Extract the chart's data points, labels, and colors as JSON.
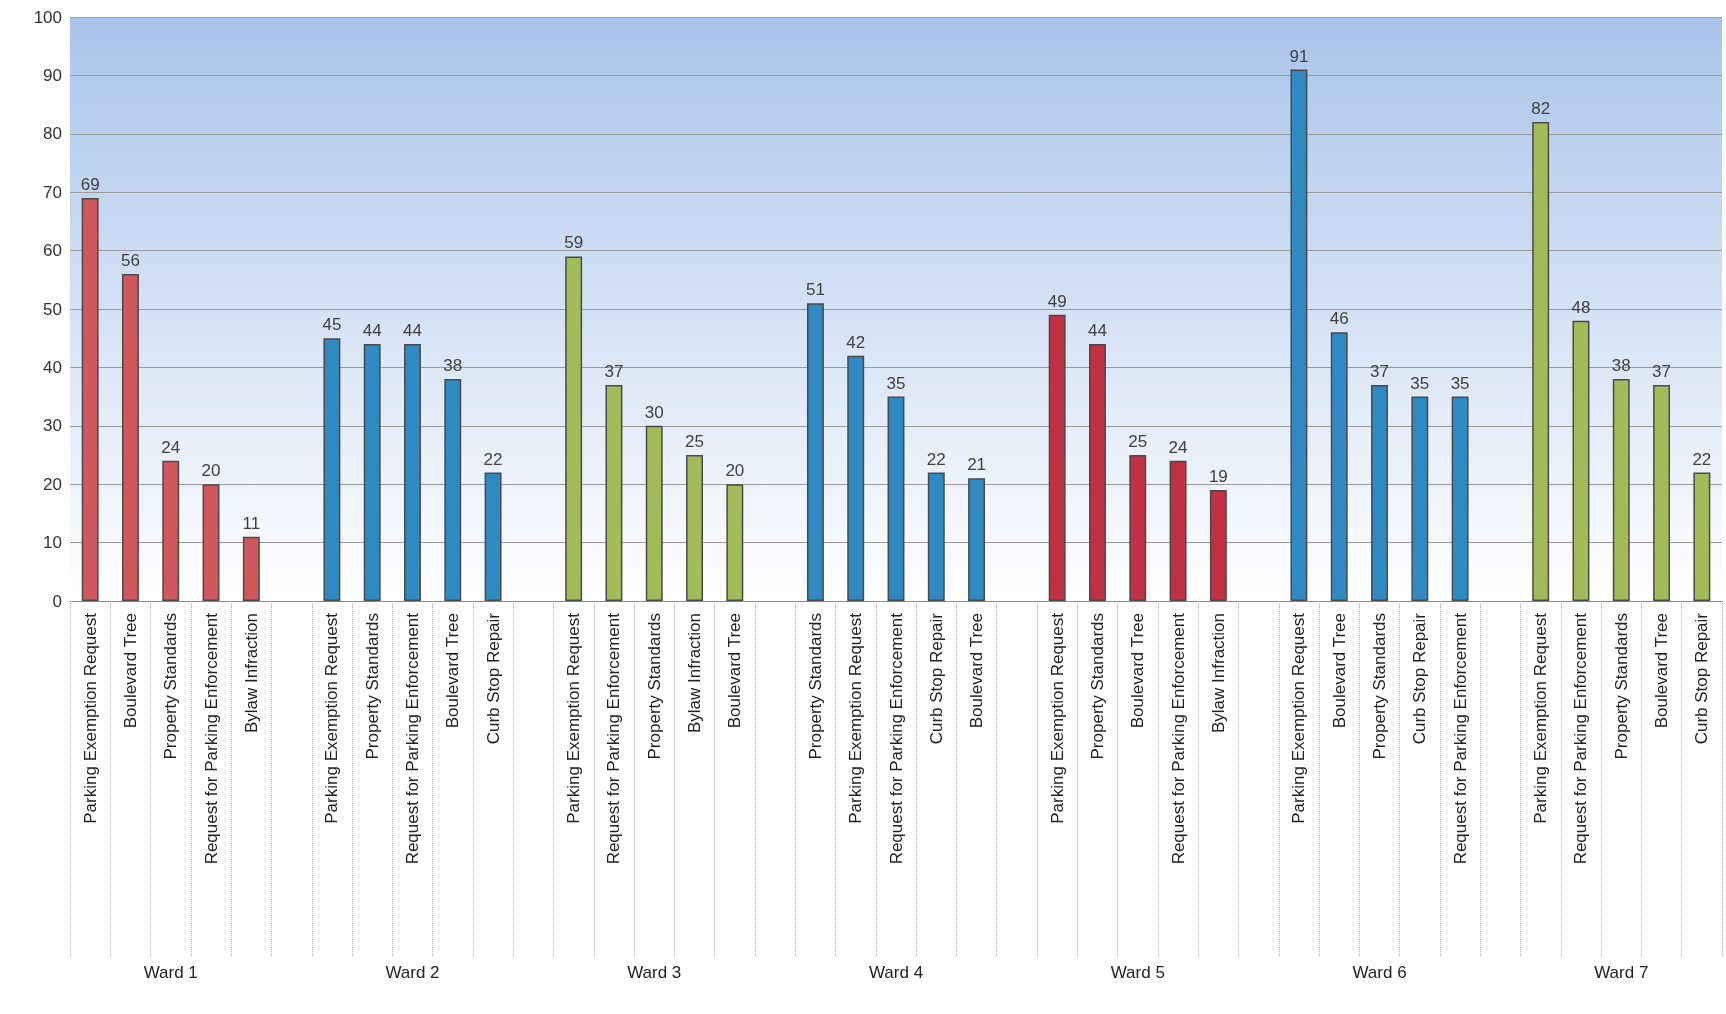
{
  "chart_data": {
    "type": "bar",
    "categories": [
      "Parking Exemption Request",
      "Boulevard Tree",
      "Property Standards",
      "Request for Parking Enforcement",
      "Bylaw Infraction",
      null,
      "Parking Exemption Request",
      "Property Standards",
      "Request for Parking Enforcement",
      "Boulevard Tree",
      "Curb Stop Repair",
      null,
      "Parking Exemption Request",
      "Request for Parking Enforcement",
      "Property Standards",
      "Bylaw Infraction",
      "Boulevard Tree",
      null,
      "Property Standards",
      "Parking Exemption Request",
      "Request for Parking Enforcement",
      "Curb Stop Repair",
      "Boulevard Tree",
      null,
      "Parking Exemption Request",
      "Property Standards",
      "Boulevard Tree",
      "Request for Parking Enforcement",
      "Bylaw Infraction",
      null,
      "Parking Exemption Request",
      "Boulevard Tree",
      "Property Standards",
      "Curb Stop Repair",
      "Request for Parking Enforcement",
      null,
      "Parking Exemption Request",
      "Request for Parking Enforcement",
      "Property Standards",
      "Boulevard Tree",
      "Curb Stop Repair"
    ],
    "values": [
      69,
      56,
      24,
      20,
      11,
      null,
      45,
      44,
      44,
      38,
      22,
      null,
      59,
      37,
      30,
      25,
      20,
      null,
      51,
      42,
      35,
      22,
      21,
      null,
      49,
      44,
      25,
      24,
      19,
      null,
      91,
      46,
      37,
      35,
      35,
      null,
      82,
      48,
      38,
      37,
      22
    ],
    "colors": [
      "#d0575c",
      "#d0575c",
      "#d0575c",
      "#d0575c",
      "#d0575c",
      null,
      "#2f8ac4",
      "#2f8ac4",
      "#2f8ac4",
      "#2f8ac4",
      "#2f8ac4",
      null,
      "#a3bc5a",
      "#a3bc5a",
      "#a3bc5a",
      "#a3bc5a",
      "#a3bc5a",
      null,
      "#2f8ac4",
      "#2f8ac4",
      "#2f8ac4",
      "#2f8ac4",
      "#2f8ac4",
      null,
      "#c23044",
      "#c23044",
      "#c23044",
      "#c23044",
      "#c23044",
      null,
      "#2f8ac4",
      "#2f8ac4",
      "#2f8ac4",
      "#2f8ac4",
      "#2f8ac4",
      null,
      "#a3bc5a",
      "#a3bc5a",
      "#a3bc5a",
      "#a3bc5a",
      "#a3bc5a"
    ],
    "ylim": [
      0,
      100
    ],
    "yticks": [
      0,
      10,
      20,
      30,
      40,
      50,
      60,
      70,
      80,
      90,
      100
    ],
    "grid": true,
    "data_labels": true,
    "annotations": [
      "Ward 1",
      "Ward 2",
      "Ward 3",
      "Ward 4",
      "Ward 5",
      "Ward 6",
      "Ward 7"
    ]
  }
}
